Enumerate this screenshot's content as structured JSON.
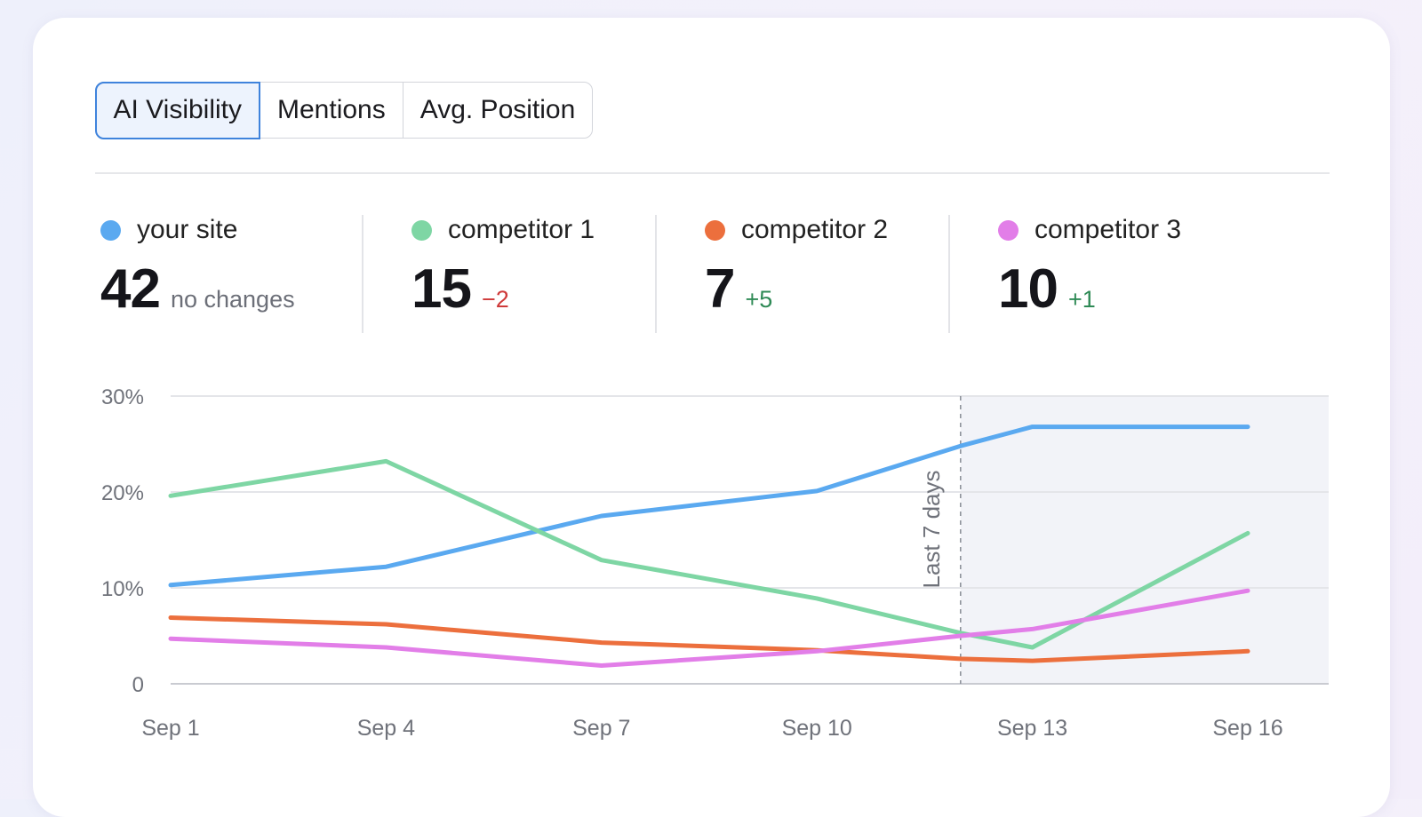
{
  "tabs": [
    {
      "label": "AI Visibility",
      "active": true
    },
    {
      "label": "Mentions",
      "active": false
    },
    {
      "label": "Avg. Position",
      "active": false
    }
  ],
  "metrics": [
    {
      "name": "your site",
      "value": "42",
      "change": "no changes",
      "change_kind": "neutral",
      "color": "#5aa9f0"
    },
    {
      "name": "competitor 1",
      "value": "15",
      "change": "−2",
      "change_kind": "neg",
      "color": "#7ed6a4"
    },
    {
      "name": "competitor 2",
      "value": "7",
      "change": "+5",
      "change_kind": "pos",
      "color": "#ec6f3d"
    },
    {
      "name": "competitor 3",
      "value": "10",
      "change": "+1",
      "change_kind": "pos",
      "color": "#e27ee8"
    }
  ],
  "chart_data": {
    "type": "line",
    "x": [
      "Sep 1",
      "Sep 4",
      "Sep 7",
      "Sep 10",
      "Sep 12",
      "Sep 13",
      "Sep 16"
    ],
    "x_tick_labels": [
      "Sep 1",
      "Sep 4",
      "Sep 7",
      "Sep 10",
      "Sep 13",
      "Sep 16"
    ],
    "y_tick_labels": [
      "0",
      "10%",
      "20%",
      "30%"
    ],
    "ylim": [
      0,
      30
    ],
    "y_unit": "%",
    "grid": true,
    "annotation": {
      "label": "Last 7 days",
      "from": "Sep 12",
      "to": "Sep 16"
    },
    "series": [
      {
        "name": "your site",
        "color": "#5aa9f0",
        "values": [
          10.3,
          12.2,
          17.5,
          20.1,
          24.8,
          26.8,
          26.8
        ]
      },
      {
        "name": "competitor 1",
        "color": "#7ed6a4",
        "values": [
          19.6,
          23.2,
          12.9,
          8.9,
          5.3,
          3.8,
          15.7
        ]
      },
      {
        "name": "competitor 2",
        "color": "#ec6f3d",
        "values": [
          6.9,
          6.2,
          4.3,
          3.5,
          2.6,
          2.4,
          3.4
        ]
      },
      {
        "name": "competitor 3",
        "color": "#e27ee8",
        "values": [
          4.7,
          3.8,
          1.9,
          3.4,
          5.0,
          5.7,
          9.7
        ]
      }
    ]
  }
}
